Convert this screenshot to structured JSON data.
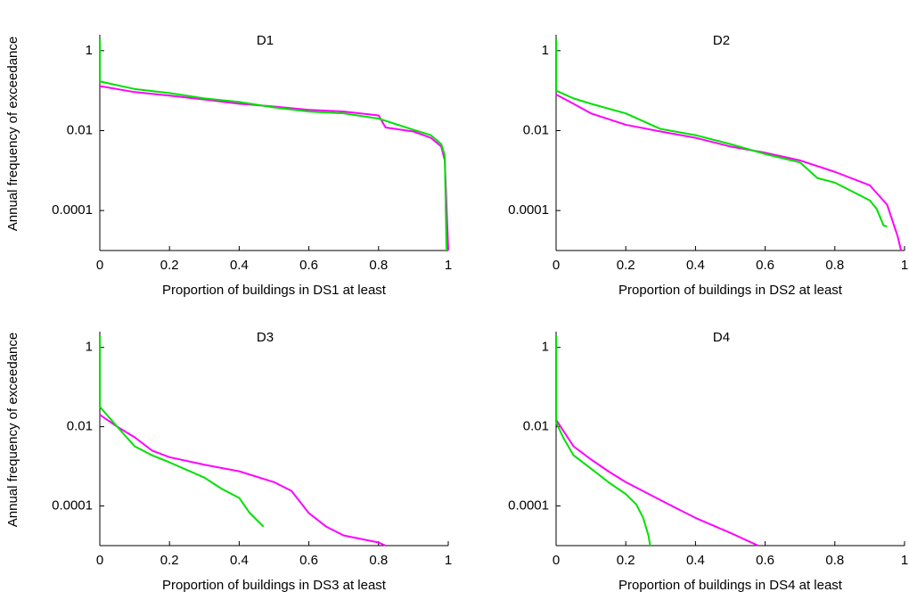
{
  "chart_data": [
    {
      "type": "line",
      "title": "D1",
      "xlabel": "Proportion of buildings in DS1 at least",
      "ylabel": "Annual frequency of exceedance",
      "xlim": [
        0,
        1
      ],
      "xticks": [
        0,
        0.2,
        0.4,
        0.6,
        0.8,
        1
      ],
      "ylim": [
        1e-05,
        2.5
      ],
      "yticks": [
        1,
        0.01,
        0.0001
      ],
      "ylog": true,
      "grid": false,
      "series": [
        {
          "color": "#ff00ff",
          "x": [
            0,
            0.1,
            0.2,
            0.3,
            0.4,
            0.5,
            0.6,
            0.7,
            0.8,
            0.82,
            0.9,
            0.95,
            0.98,
            0.99,
            1
          ],
          "values": [
            0.13,
            0.092,
            0.075,
            0.06,
            0.047,
            0.04,
            0.033,
            0.03,
            0.024,
            0.012,
            0.0095,
            0.0066,
            0.004,
            0.0018,
            1e-05
          ]
        },
        {
          "color": "#00e000",
          "x": [
            0,
            0,
            0.1,
            0.2,
            0.3,
            0.4,
            0.5,
            0.6,
            0.7,
            0.8,
            0.9,
            0.95,
            0.98,
            0.99,
            0.995
          ],
          "values": [
            2,
            0.17,
            0.11,
            0.087,
            0.064,
            0.052,
            0.038,
            0.03,
            0.027,
            0.02,
            0.0105,
            0.0077,
            0.0046,
            0.0024,
            1e-05
          ]
        }
      ]
    },
    {
      "type": "line",
      "title": "D2",
      "xlabel": "Proportion of buildings in DS2 at least",
      "xlim": [
        0,
        1
      ],
      "xticks": [
        0,
        0.2,
        0.4,
        0.6,
        0.8,
        1
      ],
      "ylim": [
        1e-05,
        2.5
      ],
      "yticks": [
        1,
        0.01,
        0.0001
      ],
      "ylog": true,
      "grid": false,
      "series": [
        {
          "color": "#ff00ff",
          "x": [
            0,
            0.05,
            0.1,
            0.2,
            0.3,
            0.4,
            0.5,
            0.6,
            0.7,
            0.8,
            0.9,
            0.95,
            0.98,
            0.99
          ],
          "values": [
            0.08,
            0.047,
            0.027,
            0.014,
            0.0095,
            0.0066,
            0.004,
            0.0028,
            0.0018,
            0.00093,
            0.00043,
            0.00014,
            2.3e-05,
            1e-05
          ]
        },
        {
          "color": "#00e000",
          "x": [
            0,
            0,
            0.05,
            0.1,
            0.2,
            0.3,
            0.4,
            0.5,
            0.6,
            0.7,
            0.75,
            0.8,
            0.85,
            0.9,
            0.92,
            0.94,
            0.95
          ],
          "values": [
            2,
            0.1,
            0.064,
            0.047,
            0.027,
            0.011,
            0.0077,
            0.0046,
            0.0026,
            0.0016,
            0.00065,
            0.0005,
            0.0003,
            0.00018,
            0.00011,
            4.2e-05,
            4e-05
          ]
        }
      ]
    },
    {
      "type": "line",
      "title": "D3",
      "xlabel": "Proportion of buildings in DS3 at least",
      "ylabel": "Annual frequency of exceedance",
      "xlim": [
        0,
        1
      ],
      "xticks": [
        0,
        0.2,
        0.4,
        0.6,
        0.8,
        1
      ],
      "ylim": [
        1e-05,
        2.5
      ],
      "yticks": [
        1,
        0.01,
        0.0001
      ],
      "ylog": true,
      "grid": false,
      "series": [
        {
          "color": "#ff00ff",
          "x": [
            0,
            0.05,
            0.1,
            0.15,
            0.2,
            0.3,
            0.4,
            0.5,
            0.55,
            0.6,
            0.65,
            0.7,
            0.8,
            0.82
          ],
          "values": [
            0.02,
            0.01,
            0.0054,
            0.0025,
            0.0017,
            0.0011,
            0.00075,
            0.0004,
            0.00024,
            6.6e-05,
            3e-05,
            1.8e-05,
            1.2e-05,
            1e-05
          ]
        },
        {
          "color": "#00e000",
          "x": [
            0,
            0,
            0.02,
            0.05,
            0.1,
            0.15,
            0.2,
            0.3,
            0.35,
            0.4,
            0.43,
            0.47
          ],
          "values": [
            2,
            0.032,
            0.02,
            0.01,
            0.0032,
            0.0019,
            0.00126,
            0.00052,
            0.00027,
            0.00016,
            6.7e-05,
            3e-05
          ]
        }
      ]
    },
    {
      "type": "line",
      "title": "D4",
      "xlabel": "Proportion of buildings in DS4 at least",
      "xlim": [
        0,
        1
      ],
      "xticks": [
        0,
        0.2,
        0.4,
        0.6,
        0.8,
        1
      ],
      "ylim": [
        1e-05,
        2.5
      ],
      "yticks": [
        1,
        0.01,
        0.0001
      ],
      "ylog": true,
      "grid": false,
      "series": [
        {
          "color": "#ff00ff",
          "x": [
            0,
            0.05,
            0.1,
            0.15,
            0.2,
            0.3,
            0.4,
            0.5,
            0.58
          ],
          "values": [
            0.015,
            0.0032,
            0.0015,
            0.00075,
            0.0004,
            0.00014,
            5e-05,
            2.1e-05,
            1e-05
          ]
        },
        {
          "color": "#00e000",
          "x": [
            0,
            0,
            0.02,
            0.05,
            0.1,
            0.15,
            0.2,
            0.23,
            0.25,
            0.265,
            0.27
          ],
          "values": [
            2,
            0.013,
            0.0054,
            0.0019,
            0.00088,
            0.0004,
            0.0002,
            0.00011,
            5e-05,
            1.8e-05,
            1e-05
          ]
        }
      ]
    }
  ]
}
